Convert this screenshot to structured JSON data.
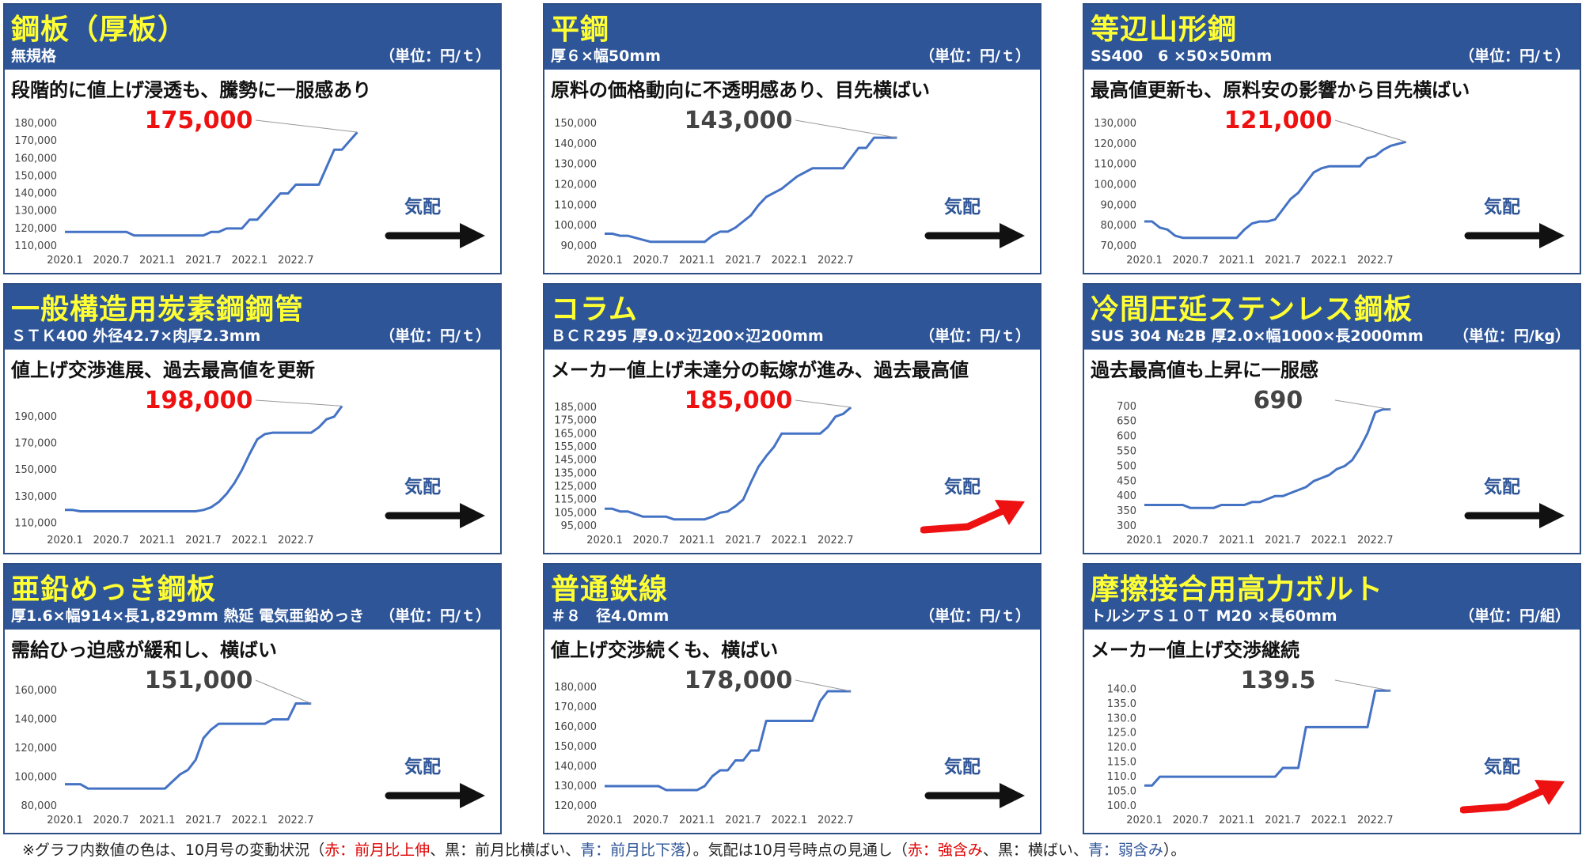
{
  "colors": {
    "header_bg": "#2e5597",
    "title": "#ffff33",
    "line": "#4472c4",
    "red": "#ee1111",
    "black": "#111111",
    "blue": "#2e5597"
  },
  "x_tick_labels": [
    "2020.1",
    "2020.7",
    "2021.1",
    "2021.7",
    "2022.1",
    "2022.7"
  ],
  "outlook_label": "気配",
  "panels": [
    {
      "title": "鋼板（厚板）",
      "spec": "無規格",
      "unit": "（単位：円/ｔ）",
      "headline": "段階的に値上げ浸透も、騰勢に一服感あり",
      "value_label": "175,000",
      "value_color": "red",
      "outlook": "flat",
      "chart_data": {
        "type": "line",
        "yticks": [
          "110,000",
          "120,000",
          "130,000",
          "140,000",
          "150,000",
          "160,000",
          "170,000",
          "180,000"
        ],
        "ylim": [
          110000,
          180000
        ],
        "y": [
          118000,
          118000,
          118000,
          118000,
          118000,
          118000,
          118000,
          118000,
          118000,
          116000,
          116000,
          116000,
          116000,
          116000,
          116000,
          116000,
          116000,
          116000,
          116000,
          118000,
          118000,
          120000,
          120000,
          120000,
          125000,
          125000,
          130000,
          135000,
          140000,
          140000,
          145000,
          145000,
          145000,
          145000,
          155000,
          165000,
          165000,
          170000,
          175000
        ]
      }
    },
    {
      "title": "平鋼",
      "spec": "厚６×幅50mm",
      "unit": "（単位：円/ｔ）",
      "headline": "原料の価格動向に不透明感あり、目先横ばい",
      "value_label": "143,000",
      "value_color": "black",
      "outlook": "flat",
      "chart_data": {
        "type": "line",
        "yticks": [
          "90,000",
          "100,000",
          "110,000",
          "120,000",
          "130,000",
          "140,000",
          "150,000"
        ],
        "ylim": [
          90000,
          150000
        ],
        "y": [
          96000,
          96000,
          95000,
          95000,
          94000,
          93000,
          92000,
          92000,
          92000,
          92000,
          92000,
          92000,
          92000,
          92000,
          95000,
          97000,
          97000,
          99000,
          102000,
          105000,
          110000,
          114000,
          116000,
          118000,
          121000,
          124000,
          126000,
          128000,
          128000,
          128000,
          128000,
          128000,
          133000,
          138000,
          138000,
          143000,
          143000,
          143000,
          143000
        ]
      }
    },
    {
      "title": "等辺山形鋼",
      "spec": "SS400　6 ×50×50mm",
      "unit": "（単位：円/ｔ）",
      "headline": "最高値更新も、原料安の影響から目先横ばい",
      "value_label": "121,000",
      "value_color": "red",
      "outlook": "flat",
      "chart_data": {
        "type": "line",
        "yticks": [
          "70,000",
          "80,000",
          "90,000",
          "100,000",
          "110,000",
          "120,000",
          "130,000"
        ],
        "ylim": [
          70000,
          130000
        ],
        "y": [
          82000,
          82000,
          79000,
          78000,
          75000,
          74000,
          74000,
          74000,
          74000,
          74000,
          74000,
          74000,
          74000,
          78000,
          81000,
          82000,
          82000,
          83000,
          88000,
          93000,
          96000,
          101000,
          106000,
          108000,
          109000,
          109000,
          109000,
          109000,
          109000,
          113000,
          114000,
          117000,
          119000,
          120000,
          121000
        ]
      }
    },
    {
      "title": "一般構造用炭素鋼鋼管",
      "spec": "ＳＴＫ400 外径42.7×肉厚2.3mm",
      "unit": "（単位：円/ｔ）",
      "headline": "値上げ交渉進展、過去最高値を更新",
      "value_label": "198,000",
      "value_color": "red",
      "outlook": "flat",
      "chart_data": {
        "type": "line",
        "yticks": [
          "110,000",
          "130,000",
          "150,000",
          "170,000",
          "190,000"
        ],
        "ylim": [
          108000,
          200000
        ],
        "y": [
          120000,
          120000,
          119000,
          119000,
          119000,
          119000,
          119000,
          119000,
          119000,
          119000,
          119000,
          119000,
          119000,
          119000,
          119000,
          119000,
          119000,
          119000,
          120000,
          122000,
          126000,
          132000,
          140000,
          150000,
          162000,
          173000,
          177000,
          178000,
          178000,
          178000,
          178000,
          178000,
          178000,
          182000,
          188000,
          190000,
          198000
        ]
      }
    },
    {
      "title": "コラム",
      "spec": "ＢＣＲ295 厚9.0×辺200×辺200mm",
      "unit": "（単位：円/ｔ）",
      "headline": "メーカー値上げ未達分の転嫁が進み、過去最高値",
      "value_label": "185,000",
      "value_color": "red",
      "outlook": "up",
      "chart_data": {
        "type": "line",
        "yticks": [
          "95,000",
          "105,000",
          "115,000",
          "125,000",
          "135,000",
          "145,000",
          "155,000",
          "165,000",
          "175,000",
          "185,000"
        ],
        "ylim": [
          95000,
          188000
        ],
        "y": [
          108000,
          108000,
          106000,
          106000,
          104000,
          102000,
          102000,
          102000,
          102000,
          100000,
          100000,
          100000,
          100000,
          100000,
          102000,
          105000,
          106000,
          110000,
          115000,
          128000,
          140000,
          148000,
          155000,
          165000,
          165000,
          165000,
          165000,
          165000,
          165000,
          170000,
          178000,
          180000,
          185000
        ]
      }
    },
    {
      "title": "冷間圧延ステンレス鋼板",
      "spec": "SUS 304 №2B 厚2.0×幅1000×長2000mm",
      "unit": "（単位：円/kg）",
      "headline": "過去最高値も上昇に一服感",
      "value_label": "690",
      "value_color": "black",
      "outlook": "flat",
      "chart_data": {
        "type": "line",
        "yticks": [
          "300",
          "350",
          "400",
          "450",
          "500",
          "550",
          "600",
          "650",
          "700"
        ],
        "ylim": [
          300,
          710
        ],
        "y": [
          370,
          370,
          370,
          370,
          370,
          370,
          360,
          360,
          360,
          360,
          370,
          370,
          370,
          370,
          380,
          380,
          390,
          400,
          400,
          410,
          420,
          430,
          450,
          460,
          470,
          490,
          500,
          520,
          560,
          610,
          680,
          690,
          690
        ]
      }
    },
    {
      "title": "亜鉛めっき鋼板",
      "spec": "厚1.6×幅914×長1,829mm 熱延 電気亜鉛めっき",
      "unit": "（単位：円/ｔ）",
      "headline": "需給ひっ迫感が緩和し、横ばい",
      "value_label": "151,000",
      "value_color": "black",
      "outlook": "flat",
      "chart_data": {
        "type": "line",
        "yticks": [
          "80,000",
          "100,000",
          "120,000",
          "140,000",
          "160,000"
        ],
        "ylim": [
          80000,
          165000
        ],
        "y": [
          95000,
          95000,
          95000,
          92000,
          92000,
          92000,
          92000,
          92000,
          92000,
          92000,
          92000,
          92000,
          92000,
          92000,
          97000,
          102000,
          105000,
          112000,
          127000,
          133000,
          137000,
          137000,
          137000,
          137000,
          137000,
          137000,
          137000,
          140000,
          140000,
          140000,
          151000,
          151000,
          151000
        ]
      }
    },
    {
      "title": "普通鉄線",
      "spec": "＃８　径4.0mm",
      "unit": "（単位：円/ｔ）",
      "headline": "値上げ交渉続くも、横ばい",
      "value_label": "178,000",
      "value_color": "black",
      "outlook": "flat",
      "chart_data": {
        "type": "line",
        "yticks": [
          "120,000",
          "130,000",
          "140,000",
          "150,000",
          "160,000",
          "170,000",
          "180,000"
        ],
        "ylim": [
          120000,
          182000
        ],
        "y": [
          130000,
          130000,
          130000,
          130000,
          130000,
          130000,
          130000,
          130000,
          128000,
          128000,
          128000,
          128000,
          128000,
          130000,
          135000,
          138000,
          138000,
          143000,
          143000,
          148000,
          148000,
          163000,
          163000,
          163000,
          163000,
          163000,
          163000,
          163000,
          173000,
          178000,
          178000,
          178000,
          178000
        ]
      }
    },
    {
      "title": "摩擦接合用高力ボルト",
      "spec": "トルシアＳ１０Ｔ M20 ×長60mm",
      "unit": "（単位：円/組）",
      "headline": "メーカー値上げ交渉継続",
      "value_label": "139.5",
      "value_color": "black",
      "outlook": "up",
      "chart_data": {
        "type": "line",
        "yticks": [
          "100.0",
          "105.0",
          "110.0",
          "115.0",
          "120.0",
          "125.0",
          "130.0",
          "135.0",
          "140.0"
        ],
        "ylim": [
          100,
          142
        ],
        "y": [
          107,
          107,
          110,
          110,
          110,
          110,
          110,
          110,
          110,
          110,
          110,
          110,
          110,
          110,
          110,
          110,
          110,
          110,
          113,
          113,
          113,
          127,
          127,
          127,
          127,
          127,
          127,
          127,
          127,
          127,
          139.5,
          139.5,
          139.5
        ]
      }
    }
  ],
  "footnote": {
    "prefix": "※グラフ内数値の色は、10月号の変動状況（",
    "red1": "赤：前月比上伸",
    "mid1": "、黒：前月比横ばい、",
    "blue1": "青：前月比下落",
    "mid2": "）。気配は10月号時点の見通し（",
    "red2": "赤：強含み",
    "mid3": "、黒：横ばい、",
    "blue2": "青：弱含み",
    "suffix": "）。"
  }
}
